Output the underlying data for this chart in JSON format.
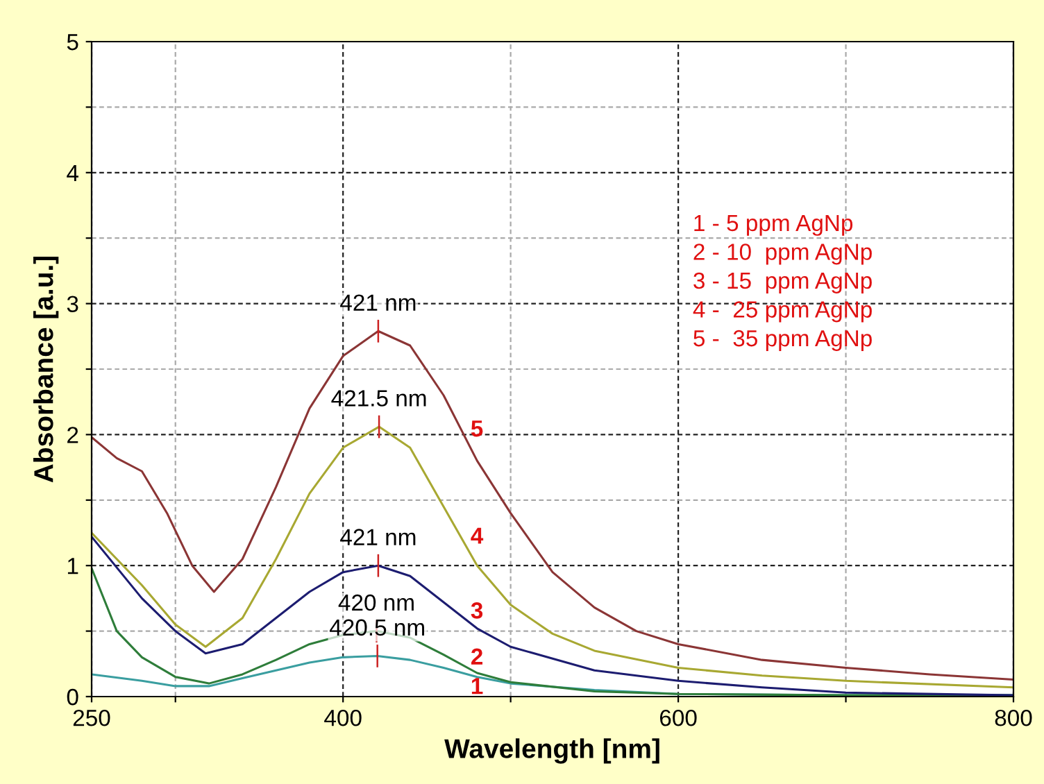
{
  "chart_data": {
    "type": "line",
    "xlabel": "Wavelength [nm]",
    "ylabel": "Absorbance [a.u.]",
    "xlim": [
      250,
      800
    ],
    "ylim": [
      0,
      5
    ],
    "xticks": [
      250,
      {
        "value": 300,
        "label": null
      },
      400,
      {
        "value": 500,
        "label": null
      },
      600,
      {
        "value": 700,
        "label": null
      },
      800
    ],
    "yticks": [
      0,
      {
        "value": 0.5,
        "label": null
      },
      1,
      {
        "value": 1.5,
        "label": null
      },
      2,
      {
        "value": 2.5,
        "label": null
      },
      3,
      {
        "value": 3.5,
        "label": null
      },
      4,
      {
        "value": 4.5,
        "label": null
      },
      5
    ],
    "grid": true,
    "legend": false,
    "marker": "none",
    "line_style": "solid",
    "series": [
      {
        "name": "1",
        "color": "#3a9ea0",
        "x": [
          250,
          280,
          300,
          320,
          340,
          360,
          380,
          400,
          420.5,
          440,
          460,
          480,
          500,
          550,
          600,
          700,
          800
        ],
        "values": [
          0.17,
          0.12,
          0.08,
          0.08,
          0.14,
          0.2,
          0.26,
          0.3,
          0.31,
          0.28,
          0.22,
          0.15,
          0.1,
          0.05,
          0.02,
          0.01,
          0.01
        ]
      },
      {
        "name": "2",
        "color": "#2e7d3a",
        "x": [
          250,
          265,
          280,
          300,
          320,
          340,
          360,
          380,
          400,
          420,
          440,
          460,
          480,
          500,
          550,
          600,
          700,
          800
        ],
        "values": [
          0.98,
          0.5,
          0.3,
          0.15,
          0.1,
          0.17,
          0.28,
          0.4,
          0.47,
          0.5,
          0.45,
          0.32,
          0.18,
          0.11,
          0.04,
          0.02,
          0.01,
          0.01
        ]
      },
      {
        "name": "3",
        "color": "#1c1c70",
        "x": [
          250,
          280,
          300,
          318,
          340,
          360,
          380,
          400,
          421,
          440,
          460,
          480,
          500,
          550,
          600,
          650,
          700,
          800
        ],
        "values": [
          1.22,
          0.75,
          0.5,
          0.33,
          0.4,
          0.6,
          0.8,
          0.95,
          1.0,
          0.92,
          0.72,
          0.52,
          0.38,
          0.2,
          0.12,
          0.07,
          0.03,
          0.01
        ]
      },
      {
        "name": "4",
        "color": "#a8a832",
        "x": [
          250,
          280,
          300,
          318,
          340,
          360,
          380,
          400,
          421.5,
          440,
          460,
          480,
          500,
          525,
          550,
          600,
          650,
          700,
          800
        ],
        "values": [
          1.25,
          0.85,
          0.55,
          0.38,
          0.6,
          1.05,
          1.55,
          1.9,
          2.06,
          1.9,
          1.45,
          1.0,
          0.7,
          0.48,
          0.35,
          0.22,
          0.16,
          0.12,
          0.07
        ]
      },
      {
        "name": "5",
        "color": "#8b3535",
        "x": [
          250,
          265,
          280,
          295,
          310,
          323,
          340,
          360,
          380,
          400,
          421,
          440,
          460,
          480,
          500,
          525,
          550,
          575,
          600,
          650,
          700,
          750,
          800
        ],
        "values": [
          1.98,
          1.82,
          1.72,
          1.4,
          1.0,
          0.8,
          1.05,
          1.6,
          2.2,
          2.6,
          2.79,
          2.68,
          2.3,
          1.8,
          1.4,
          0.95,
          0.68,
          0.5,
          0.4,
          0.28,
          0.22,
          0.17,
          0.13
        ]
      }
    ],
    "annotations": [
      {
        "text": "421 nm",
        "x": 421,
        "y": 2.79
      },
      {
        "text": "421.5 nm",
        "x": 421.5,
        "y": 2.06
      },
      {
        "text": "421 nm",
        "x": 421,
        "y": 1.0
      },
      {
        "text": "420 nm",
        "x": 420,
        "y": 0.5
      },
      {
        "text": "420.5 nm",
        "x": 420.5,
        "y": 0.31
      },
      "1 - 5 ppm AgNp",
      "2 - 10  ppm AgNp",
      "3 - 15  ppm AgNp",
      "4 -  25 ppm AgNp",
      "5 -  35 ppm AgNp"
    ]
  }
}
